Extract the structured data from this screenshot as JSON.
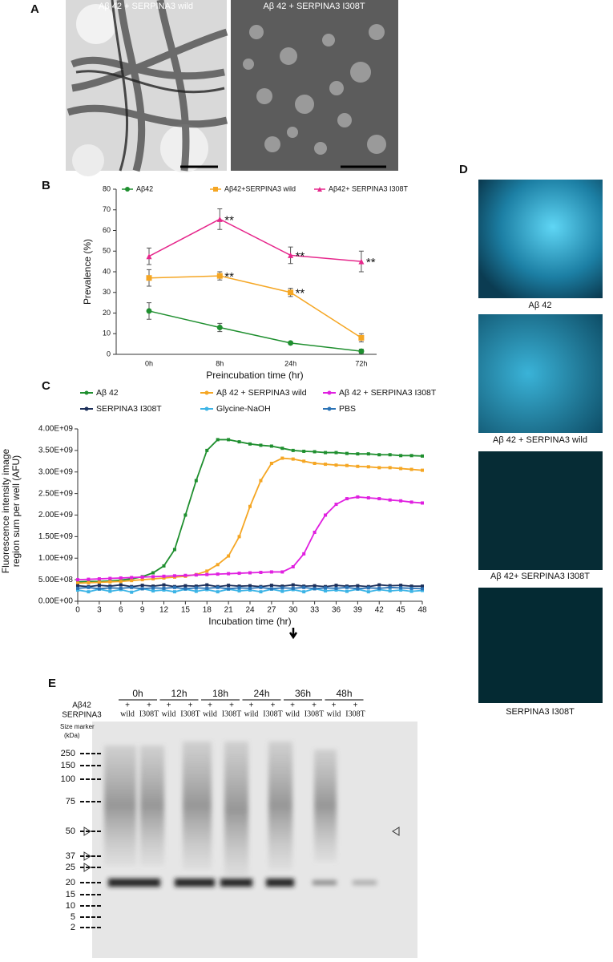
{
  "panel_a": {
    "label": "A",
    "titles": [
      "Aβ 42 + SERPINA3 wild",
      "Aβ 42 + SERPINA3 I308T"
    ]
  },
  "panel_b": {
    "label": "B"
  },
  "panel_c": {
    "label": "C"
  },
  "panel_d": {
    "label": "D",
    "captions": [
      "Aβ 42",
      "Aβ 42 + SERPINA3 wild",
      "Aβ 42+ SERPINA3 I308T",
      "SERPINA3 I308T"
    ]
  },
  "blot": {
    "label": "E",
    "rows": [
      "Aβ42",
      "SERPINA3"
    ],
    "times": [
      "0h",
      "12h",
      "18h",
      "24h",
      "36h",
      "48h"
    ],
    "plus": "+",
    "lanes": [
      "wild",
      "I308T"
    ],
    "marker_title": [
      "Size marker",
      "(kDa)"
    ],
    "markers": [
      250,
      150,
      100,
      75,
      50,
      37,
      25,
      20,
      15,
      10,
      5,
      2
    ]
  },
  "chart_data": [
    {
      "type": "line",
      "x_label": "Preincubation time (hr)",
      "y_label": "Prevalence (%)",
      "categories": [
        "0h",
        "8h",
        "24h",
        "72h"
      ],
      "ylim": [
        0,
        80
      ],
      "yticks": [
        0,
        10,
        20,
        30,
        40,
        50,
        60,
        70,
        80
      ],
      "annotations": [
        "**",
        "**",
        "**",
        "**",
        "**"
      ],
      "series": [
        {
          "name": "Aβ42",
          "color": "#1f8f2f",
          "marker": "circle",
          "values": [
            21,
            13,
            5.5,
            1.5
          ],
          "errors": [
            4,
            2,
            0.5,
            1
          ]
        },
        {
          "name": "Aβ42+SERPINA3 wild",
          "color": "#f5a623",
          "marker": "square",
          "values": [
            37,
            38,
            30,
            8
          ],
          "errors": [
            4,
            2,
            2,
            2
          ]
        },
        {
          "name": "Aβ42+ SERPINA3 I308T",
          "color": "#e6288c",
          "marker": "triangle",
          "values": [
            47.5,
            65.5,
            48,
            45
          ],
          "errors": [
            4,
            5,
            4,
            5
          ]
        }
      ]
    },
    {
      "type": "line",
      "x_label": "Incubation time (hr)",
      "y_label": [
        "Fluorescence intensity image",
        "region sum per well (AFU)"
      ],
      "xlim": [
        0,
        48
      ],
      "xticks": [
        0,
        3,
        6,
        9,
        12,
        15,
        18,
        21,
        24,
        27,
        30,
        33,
        36,
        39,
        42,
        45,
        48
      ],
      "ylim": [
        0,
        4000000000.0
      ],
      "yticks": [
        {
          "value": 0,
          "label": "0.00E+00"
        },
        {
          "value": 500000000.0,
          "label": "5.00E+08"
        },
        {
          "value": 1000000000.0,
          "label": "1.00E+09"
        },
        {
          "value": 1500000000.0,
          "label": "1.50E+09"
        },
        {
          "value": 2000000000.0,
          "label": "2.00E+09"
        },
        {
          "value": 2500000000.0,
          "label": "2.50E+09"
        },
        {
          "value": 3000000000.0,
          "label": "3.00E+09"
        },
        {
          "value": 3500000000.0,
          "label": "3.50E+09"
        },
        {
          "value": 4000000000.0,
          "label": "4.00E+09"
        }
      ],
      "x": [
        0,
        1.5,
        3,
        4.5,
        6,
        7.5,
        9,
        10.5,
        12,
        13.5,
        15,
        16.5,
        18,
        19.5,
        21,
        22.5,
        24,
        25.5,
        27,
        28.5,
        30,
        31.5,
        33,
        34.5,
        36,
        37.5,
        39,
        40.5,
        42,
        43.5,
        45,
        46.5,
        48
      ],
      "series": [
        {
          "name": "Aβ 42",
          "color": "#1f8f2f",
          "values": [
            450000000.0,
            460000000.0,
            460000000.0,
            470000000.0,
            490000000.0,
            520000000.0,
            570000000.0,
            660000000.0,
            820000000.0,
            1200000000.0,
            2000000000.0,
            2800000000.0,
            3500000000.0,
            3750000000.0,
            3750000000.0,
            3700000000.0,
            3650000000.0,
            3620000000.0,
            3600000000.0,
            3550000000.0,
            3500000000.0,
            3480000000.0,
            3470000000.0,
            3450000000.0,
            3450000000.0,
            3430000000.0,
            3420000000.0,
            3420000000.0,
            3400000000.0,
            3400000000.0,
            3380000000.0,
            3380000000.0,
            3370000000.0
          ]
        },
        {
          "name": "Aβ 42 + SERPINA3 wild",
          "color": "#f5a623",
          "values": [
            420000000.0,
            430000000.0,
            440000000.0,
            450000000.0,
            460000000.0,
            480000000.0,
            500000000.0,
            520000000.0,
            540000000.0,
            560000000.0,
            580000000.0,
            620000000.0,
            700000000.0,
            850000000.0,
            1050000000.0,
            1500000000.0,
            2200000000.0,
            2800000000.0,
            3200000000.0,
            3320000000.0,
            3300000000.0,
            3250000000.0,
            3200000000.0,
            3180000000.0,
            3160000000.0,
            3150000000.0,
            3130000000.0,
            3120000000.0,
            3100000000.0,
            3100000000.0,
            3080000000.0,
            3060000000.0,
            3040000000.0
          ]
        },
        {
          "name": "Aβ 42 + SERPINA3 I308T",
          "color": "#e020e0",
          "values": [
            500000000.0,
            510000000.0,
            520000000.0,
            530000000.0,
            540000000.0,
            550000000.0,
            560000000.0,
            570000000.0,
            580000000.0,
            590000000.0,
            600000000.0,
            610000000.0,
            620000000.0,
            630000000.0,
            640000000.0,
            650000000.0,
            660000000.0,
            670000000.0,
            680000000.0,
            680000000.0,
            800000000.0,
            1100000000.0,
            1600000000.0,
            2000000000.0,
            2250000000.0,
            2380000000.0,
            2420000000.0,
            2400000000.0,
            2380000000.0,
            2350000000.0,
            2330000000.0,
            2300000000.0,
            2280000000.0
          ]
        },
        {
          "name": "SERPINA3 I308T",
          "color": "#1c2f5a",
          "values": [
            360000000.0,
            340000000.0,
            370000000.0,
            350000000.0,
            380000000.0,
            340000000.0,
            370000000.0,
            350000000.0,
            380000000.0,
            340000000.0,
            360000000.0,
            350000000.0,
            380000000.0,
            340000000.0,
            370000000.0,
            350000000.0,
            360000000.0,
            340000000.0,
            370000000.0,
            350000000.0,
            380000000.0,
            350000000.0,
            360000000.0,
            340000000.0,
            370000000.0,
            350000000.0,
            360000000.0,
            340000000.0,
            380000000.0,
            360000000.0,
            370000000.0,
            350000000.0,
            350000000.0
          ]
        },
        {
          "name": "Glycine-NaOH",
          "color": "#3cb4e6",
          "values": [
            260000000.0,
            220000000.0,
            280000000.0,
            230000000.0,
            270000000.0,
            210000000.0,
            290000000.0,
            240000000.0,
            260000000.0,
            220000000.0,
            280000000.0,
            230000000.0,
            270000000.0,
            220000000.0,
            280000000.0,
            240000000.0,
            260000000.0,
            220000000.0,
            280000000.0,
            230000000.0,
            270000000.0,
            220000000.0,
            290000000.0,
            240000000.0,
            260000000.0,
            230000000.0,
            280000000.0,
            220000000.0,
            270000000.0,
            240000000.0,
            260000000.0,
            230000000.0,
            250000000.0
          ]
        },
        {
          "name": "PBS",
          "color": "#2a72b5",
          "values": [
            300000000.0,
            320000000.0,
            290000000.0,
            310000000.0,
            300000000.0,
            320000000.0,
            290000000.0,
            310000000.0,
            300000000.0,
            320000000.0,
            290000000.0,
            310000000.0,
            300000000.0,
            320000000.0,
            290000000.0,
            310000000.0,
            300000000.0,
            320000000.0,
            290000000.0,
            310000000.0,
            300000000.0,
            320000000.0,
            290000000.0,
            310000000.0,
            300000000.0,
            320000000.0,
            290000000.0,
            310000000.0,
            300000000.0,
            320000000.0,
            310000000.0,
            300000000.0,
            290000000.0
          ]
        }
      ]
    }
  ]
}
